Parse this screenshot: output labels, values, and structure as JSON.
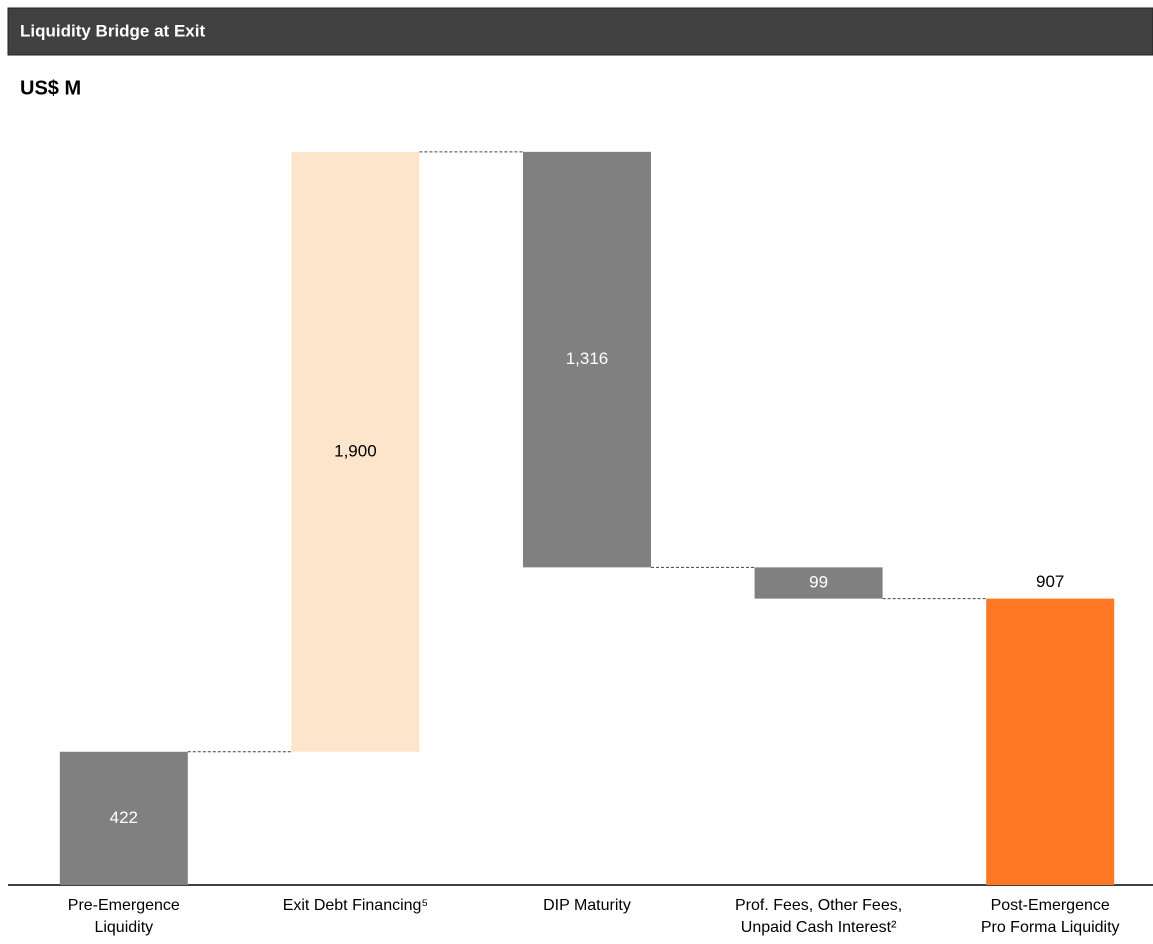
{
  "header": {
    "title": "Liquidity Bridge at Exit"
  },
  "chart_data": {
    "type": "waterfall",
    "subtitle": "US$ M",
    "categories": [
      "Pre-Emergence\nLiquidity",
      "Exit Debt Financing⁵",
      "DIP Maturity",
      "Prof. Fees, Other Fees,\nUnpaid Cash Interest²",
      "Post-Emergence\nPro Forma Liquidity"
    ],
    "values": [
      422,
      1900,
      -1316,
      -99,
      907
    ],
    "value_labels": [
      "422",
      "1,900",
      "1,316",
      "99",
      "907"
    ],
    "colors": [
      "#808080",
      "#fde5cb",
      "#808080",
      "#808080",
      "#ff7722"
    ],
    "ylim": [
      0,
      2350
    ]
  }
}
